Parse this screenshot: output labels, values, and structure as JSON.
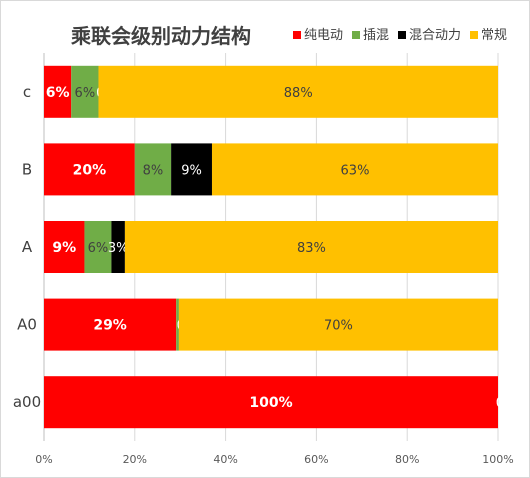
{
  "chart_data": {
    "type": "bar",
    "orientation": "horizontal",
    "stacked": "percent",
    "title": "乘联会级别动力结构",
    "categories": [
      "c",
      "B",
      "A",
      "A0",
      "a00"
    ],
    "series": [
      {
        "name": "纯电动",
        "color": "#ff0000",
        "values": [
          6,
          20,
          9,
          29,
          100
        ],
        "labels": [
          "6%",
          "20%",
          "9%",
          "29%",
          "100%"
        ],
        "label_color": "#ffffff",
        "label_bold": true
      },
      {
        "name": "插混",
        "color": "#70ad47",
        "values": [
          6,
          8,
          6,
          0.6,
          0
        ],
        "labels": [
          "6%",
          "8%",
          "6%",
          "",
          ""
        ],
        "label_color": "#404040",
        "label_bold": false
      },
      {
        "name": "混合动力",
        "color": "#000000",
        "values": [
          0,
          9,
          3,
          0,
          0
        ],
        "labels": [
          "0%",
          "9%",
          "3%",
          "0%",
          "0%"
        ],
        "label_color": "#ffffff",
        "label_bold": false
      },
      {
        "name": "常规",
        "color": "#ffc000",
        "values": [
          88,
          63,
          83,
          70,
          0
        ],
        "labels": [
          "88%",
          "63%",
          "83%",
          "70%",
          ""
        ],
        "label_color": "#404040",
        "label_bold": false
      }
    ],
    "x_ticks": [
      "0%",
      "20%",
      "40%",
      "60%",
      "80%",
      "100%"
    ],
    "xlim": [
      0,
      100
    ],
    "grid": true,
    "legend_position": "top-right"
  }
}
